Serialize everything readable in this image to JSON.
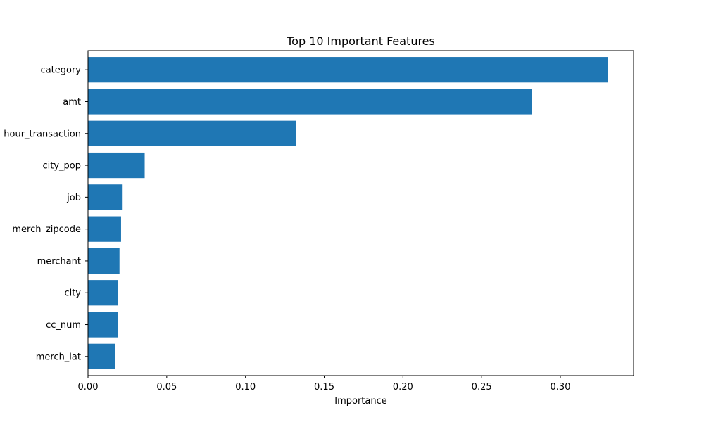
{
  "chart_data": {
    "type": "bar",
    "orientation": "horizontal",
    "title": "Top 10 Important Features",
    "xlabel": "Importance",
    "ylabel": "",
    "categories": [
      "category",
      "amt",
      "hour_transaction",
      "city_pop",
      "job",
      "merch_zipcode",
      "merchant",
      "city",
      "cc_num",
      "merch_lat"
    ],
    "values": [
      0.33,
      0.282,
      0.132,
      0.036,
      0.022,
      0.021,
      0.02,
      0.019,
      0.019,
      0.017
    ],
    "xlim": [
      0,
      0.3465
    ],
    "xticks": [
      "0.00",
      "0.05",
      "0.10",
      "0.15",
      "0.20",
      "0.25",
      "0.30"
    ],
    "bar_color": "#1f77b4",
    "grid": false,
    "legend": "none"
  }
}
